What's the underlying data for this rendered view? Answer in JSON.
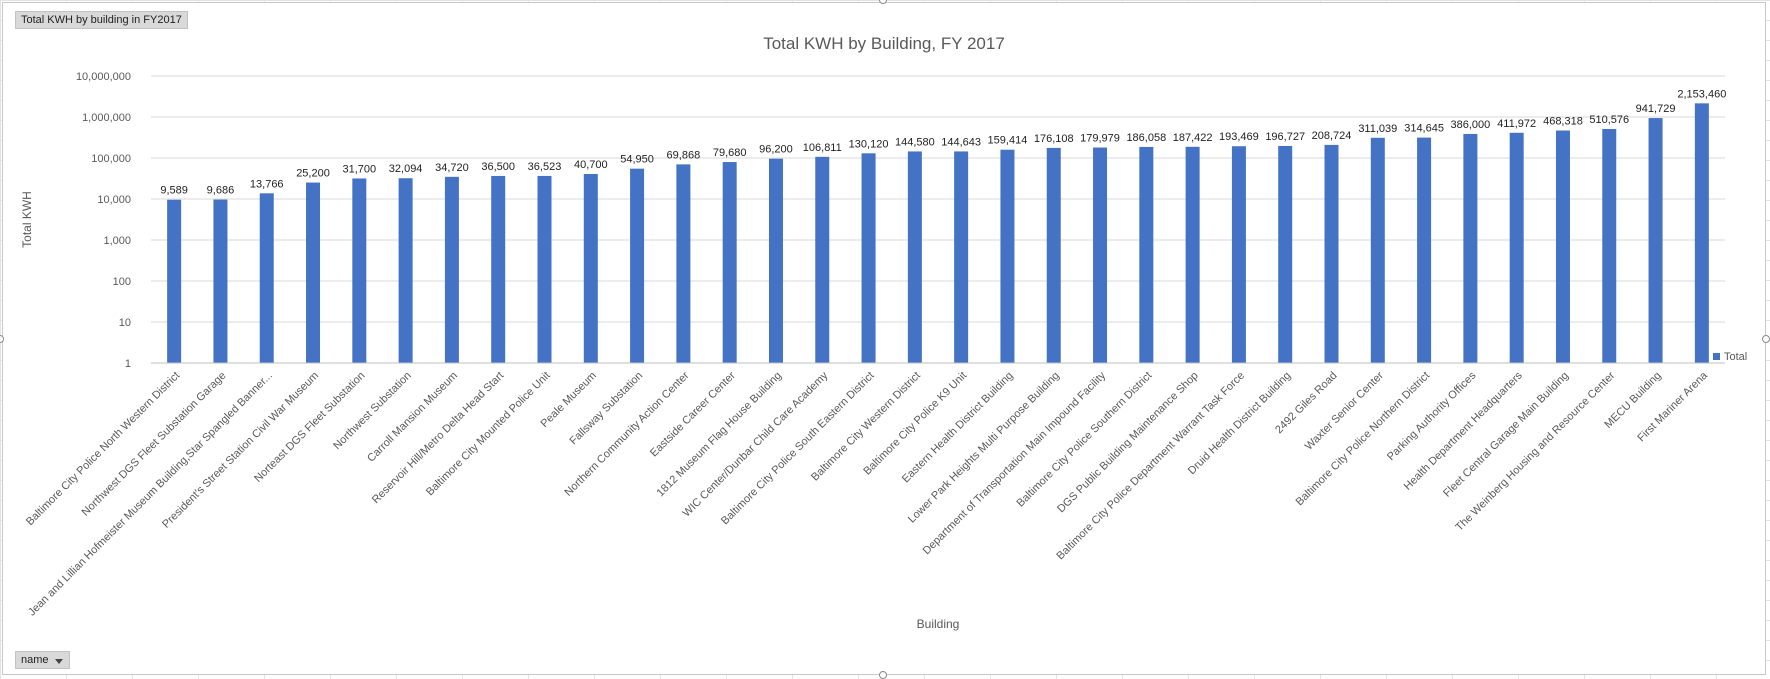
{
  "pivot": {
    "title_button": "Total KWH by building in FY2017",
    "field_button": "name"
  },
  "chart_data": {
    "type": "bar",
    "title": "Total KWH by Building, FY 2017",
    "xlabel": "Building",
    "ylabel": "Total KWH",
    "yscale": "log",
    "ylim": [
      1,
      10000000
    ],
    "y_ticks": [
      {
        "value": 10000000,
        "label": "10,000,000"
      },
      {
        "value": 1000000,
        "label": "1,000,000"
      },
      {
        "value": 100000,
        "label": "100,000"
      },
      {
        "value": 10000,
        "label": "10,000"
      },
      {
        "value": 1000,
        "label": "1,000"
      },
      {
        "value": 100,
        "label": "100"
      },
      {
        "value": 10,
        "label": "10"
      },
      {
        "value": 1,
        "label": "1"
      }
    ],
    "grid": true,
    "legend_position": "right",
    "series": [
      {
        "name": "Total",
        "color": "#4472c4",
        "values": [
          9589,
          9686,
          13766,
          25200,
          31700,
          32094,
          34720,
          36500,
          36523,
          40700,
          54950,
          69868,
          79680,
          96200,
          106811,
          130120,
          144580,
          144643,
          159414,
          176108,
          179979,
          186058,
          187422,
          193469,
          196727,
          208724,
          311039,
          314645,
          386000,
          411972,
          468318,
          510576,
          941729,
          2153460
        ],
        "labels": [
          "9,589",
          "9,686",
          "13,766",
          "25,200",
          "31,700",
          "32,094",
          "34,720",
          "36,500",
          "36,523",
          "40,700",
          "54,950",
          "69,868",
          "79,680",
          "96,200",
          "106,811",
          "130,120",
          "144,580",
          "144,643",
          "159,414",
          "176,108",
          "179,979",
          "186,058",
          "187,422",
          "193,469",
          "196,727",
          "208,724",
          "311,039",
          "314,645",
          "386,000",
          "411,972",
          "468,318",
          "510,576",
          "941,729",
          "2,153,460"
        ]
      }
    ],
    "categories": [
      "Baltimore City Police North Western District",
      "Northwest DGS Fleet Substation Garage",
      "Jean and Lillian Hofmeister Museum Building,Star Spangled Banner...",
      "President's Street Station Civil War Museum",
      "Norteast DGS Fleet Substation",
      "Northwest Substation",
      "Carroll Mansion Museum",
      "Reservoir Hill/Metro Delta Head Start",
      "Baltimore City Mounted Police Unit",
      "Peale Museum",
      "Fallsway Substation",
      "Northern Community Action Center",
      "Eastside Career Center",
      "1812 Museum Flag House Building",
      "WIC Center/Dunbar Child Care Academy",
      "Baltimore City Police South Eastern District",
      "Baltimore City Western District",
      "Baltimore City Police K9 Unit",
      "Eastern Health District Building",
      "Lower Park Heights Multi Purpose Building",
      "Department of Transportation Main Impound Facility",
      "Baltimore City Police Southern District",
      "DGS Public Building Maintenance Shop",
      "Baltimore City Police Department Warrant Task Force",
      "Druid Health District Building",
      "2492 Giles Road",
      "Waxter Senior Center",
      "Baltimore City Police Northern District",
      "Parking Authority Offices",
      "Health Department Headquarters",
      "Fleet Central Garage Main Building",
      "The Weinberg Housing and Resource Center",
      "MECU Building",
      "First Mariner Arena"
    ]
  }
}
